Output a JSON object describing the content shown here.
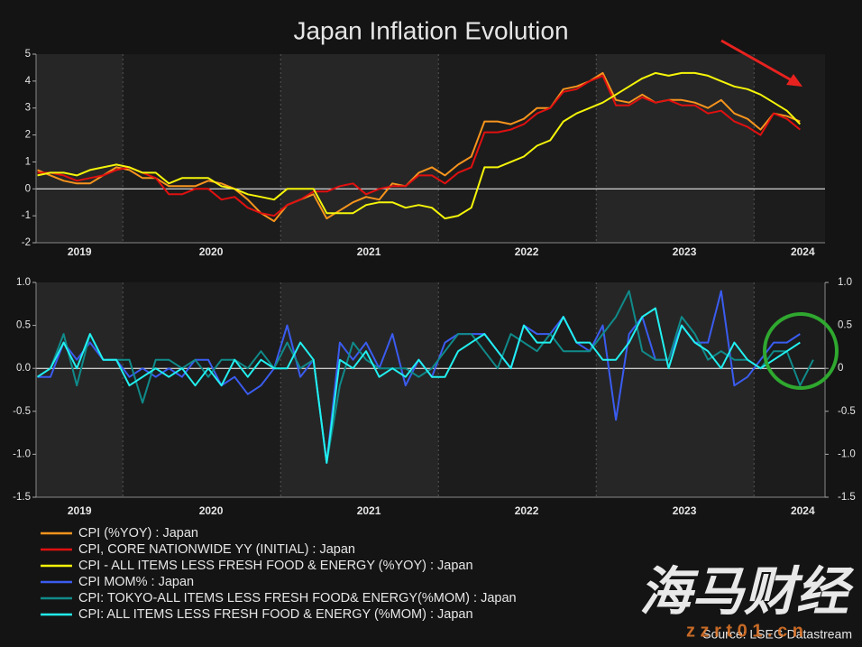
{
  "chart_data": [
    {
      "type": "line",
      "title": "Japan Inflation Evolution",
      "categories": [
        null,
        null,
        null,
        "2019",
        null,
        null,
        null,
        null,
        null,
        null,
        null,
        null,
        null,
        "2020",
        null,
        null,
        null,
        null,
        null,
        null,
        null,
        null,
        null,
        null,
        null,
        "2021",
        null,
        null,
        null,
        null,
        null,
        null,
        null,
        null,
        null,
        null,
        null,
        "2022",
        null,
        null,
        null,
        null,
        null,
        null,
        null,
        null,
        null,
        null,
        null,
        "2023",
        null,
        null,
        null,
        null,
        null,
        null,
        null,
        null,
        "2024",
        null
      ],
      "ylim": [
        -2,
        5
      ],
      "yticks": [
        -2,
        -1,
        0,
        1,
        2,
        3,
        4,
        5
      ],
      "series": [
        {
          "name": "CPI (%YOY) : Japan",
          "color": "#f7941d",
          "values": [
            0.7,
            0.5,
            0.3,
            0.2,
            0.2,
            0.5,
            0.8,
            0.7,
            0.4,
            0.4,
            0.1,
            0.1,
            0.1,
            0.3,
            0.2,
            0.0,
            -0.4,
            -0.9,
            -1.2,
            -0.6,
            -0.4,
            -0.2,
            -1.1,
            -0.8,
            -0.5,
            -0.3,
            -0.4,
            0.2,
            0.1,
            0.6,
            0.8,
            0.5,
            0.9,
            1.2,
            2.5,
            2.5,
            2.4,
            2.6,
            3.0,
            3.0,
            3.7,
            3.8,
            4.0,
            4.3,
            3.3,
            3.2,
            3.5,
            3.2,
            3.3,
            3.3,
            3.2,
            3.0,
            3.3,
            2.8,
            2.6,
            2.2,
            2.8,
            2.7,
            2.5,
            null
          ]
        },
        {
          "name": "CPI, CORE NATIONWIDE YY (INITIAL) : Japan",
          "color": "#e01010",
          "values": [
            0.6,
            0.6,
            0.5,
            0.3,
            0.4,
            0.5,
            0.7,
            0.8,
            0.6,
            0.4,
            -0.2,
            -0.2,
            0.0,
            0.0,
            -0.4,
            -0.3,
            -0.7,
            -0.9,
            -1.0,
            -0.6,
            -0.4,
            -0.1,
            -0.1,
            0.1,
            0.2,
            -0.2,
            0.0,
            0.1,
            0.1,
            0.5,
            0.5,
            0.2,
            0.6,
            0.8,
            2.1,
            2.1,
            2.2,
            2.4,
            2.8,
            3.0,
            3.6,
            3.7,
            4.0,
            4.2,
            3.1,
            3.1,
            3.4,
            3.2,
            3.3,
            3.1,
            3.1,
            2.8,
            2.9,
            2.5,
            2.3,
            2.0,
            2.8,
            2.6,
            2.2,
            null
          ]
        },
        {
          "name": "CPI - ALL ITEMS LESS FRESH FOOD & ENERGY (%YOY) : Japan",
          "color": "#f5f50a",
          "values": [
            0.5,
            0.6,
            0.6,
            0.5,
            0.7,
            0.8,
            0.9,
            0.8,
            0.6,
            0.6,
            0.2,
            0.4,
            0.4,
            0.4,
            0.1,
            0.0,
            -0.2,
            -0.3,
            -0.4,
            0.0,
            0.0,
            0.0,
            -0.9,
            -0.9,
            -0.9,
            -0.6,
            -0.5,
            -0.5,
            -0.7,
            -0.6,
            -0.7,
            -1.1,
            -1.0,
            -0.7,
            0.8,
            0.8,
            1.0,
            1.2,
            1.6,
            1.8,
            2.5,
            2.8,
            3.0,
            3.2,
            3.5,
            3.8,
            4.1,
            4.3,
            4.2,
            4.3,
            4.3,
            4.2,
            4.0,
            3.8,
            3.7,
            3.5,
            3.2,
            2.9,
            2.4,
            null
          ]
        }
      ]
    },
    {
      "type": "line",
      "categories": [
        null,
        null,
        null,
        "2019",
        null,
        null,
        null,
        null,
        null,
        null,
        null,
        null,
        null,
        "2020",
        null,
        null,
        null,
        null,
        null,
        null,
        null,
        null,
        null,
        null,
        null,
        "2021",
        null,
        null,
        null,
        null,
        null,
        null,
        null,
        null,
        null,
        null,
        null,
        "2022",
        null,
        null,
        null,
        null,
        null,
        null,
        null,
        null,
        null,
        null,
        null,
        "2023",
        null,
        null,
        null,
        null,
        null,
        null,
        null,
        null,
        "2024",
        null
      ],
      "ylim": [
        -1.5,
        1.0
      ],
      "yticks": [
        -1.5,
        {
          "value": -1.0,
          "label": "-1.0"
        },
        -0.5,
        {
          "value": 0.0,
          "label": "0.0"
        },
        0.5,
        {
          "value": 1.0,
          "label": "1.0"
        }
      ],
      "y2lim": [
        -1.5,
        1.0
      ],
      "y2ticks": [
        -1.5,
        {
          "value": -1.0,
          "label": "-1.0"
        },
        -0.5,
        0,
        0.5,
        {
          "value": 1.0,
          "label": "1.0"
        }
      ],
      "series": [
        {
          "name": "CPI MOM% : Japan",
          "color": "#3a5cf0",
          "values": [
            -0.1,
            -0.1,
            0.3,
            0.1,
            0.3,
            0.1,
            0.1,
            -0.1,
            0.0,
            -0.1,
            0.0,
            -0.1,
            0.1,
            0.1,
            -0.2,
            -0.1,
            -0.3,
            -0.2,
            0.0,
            0.5,
            -0.1,
            0.1,
            -1.1,
            0.3,
            0.1,
            0.3,
            0.0,
            0.4,
            -0.2,
            0.1,
            -0.1,
            0.3,
            0.4,
            0.4,
            0.4,
            0.2,
            0.0,
            0.5,
            0.4,
            0.4,
            0.6,
            0.3,
            0.2,
            0.5,
            -0.6,
            0.4,
            0.6,
            0.1,
            0.1,
            0.5,
            0.3,
            0.3,
            0.9,
            -0.2,
            -0.1,
            0.1,
            0.3,
            0.3,
            0.4,
            null
          ]
        },
        {
          "name": "CPI: TOKYO-ALL ITEMS LESS FRESH FOOD& ENERGY(%MOM) : Japan",
          "color": "#108a8a",
          "values": [
            -0.1,
            0.0,
            0.4,
            -0.2,
            0.4,
            0.1,
            0.1,
            0.1,
            -0.4,
            0.1,
            0.1,
            0.0,
            0.1,
            -0.1,
            0.1,
            0.1,
            0.0,
            0.2,
            0.0,
            0.3,
            0.0,
            0.1,
            -1.1,
            -0.2,
            0.3,
            0.1,
            0.0,
            0.0,
            0.0,
            -0.1,
            0.0,
            0.2,
            0.4,
            0.4,
            0.2,
            0.0,
            0.4,
            0.3,
            0.2,
            0.4,
            0.2,
            0.2,
            0.2,
            0.4,
            0.6,
            0.9,
            0.2,
            0.1,
            0.1,
            0.6,
            0.4,
            0.1,
            0.2,
            0.1,
            0.1,
            0.0,
            0.2,
            0.2,
            -0.2,
            0.1
          ]
        },
        {
          "name": "CPI: ALL ITEMS LESS FRESH FOOD & ENERGY (%MOM) : Japan",
          "color": "#22f0f0",
          "values": [
            -0.1,
            0.0,
            0.3,
            0.0,
            0.4,
            0.1,
            0.1,
            -0.2,
            -0.1,
            0.0,
            -0.1,
            0.0,
            -0.2,
            0.0,
            -0.2,
            0.1,
            -0.1,
            0.1,
            0.0,
            0.0,
            0.3,
            0.1,
            -1.1,
            0.1,
            0.0,
            0.2,
            -0.1,
            0.0,
            -0.1,
            0.1,
            -0.1,
            -0.1,
            0.2,
            0.3,
            0.4,
            0.2,
            0.0,
            0.5,
            0.3,
            0.3,
            0.6,
            0.3,
            0.3,
            0.1,
            0.1,
            0.3,
            0.6,
            0.7,
            0.0,
            0.5,
            0.3,
            0.2,
            0.0,
            0.3,
            0.1,
            0.0,
            0.1,
            0.2,
            0.3,
            null
          ]
        }
      ]
    }
  ],
  "source": "Source: LSEG Datastream",
  "watermark": {
    "logo": "海马财经",
    "url": "z z r t 0 1 . c n"
  }
}
